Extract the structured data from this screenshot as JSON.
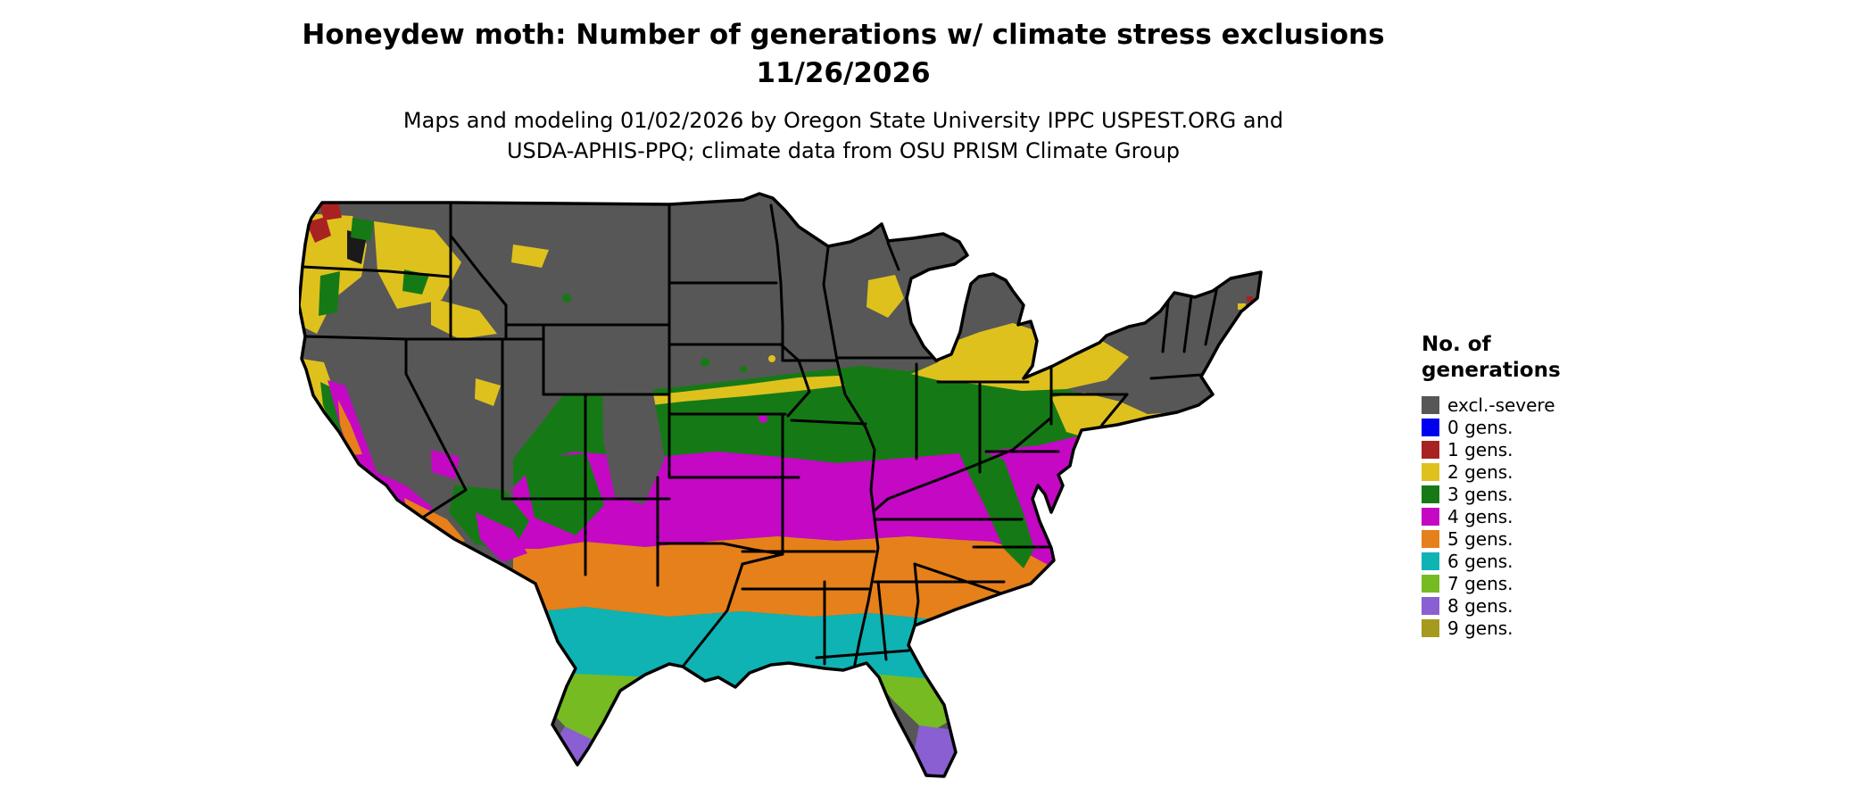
{
  "title": {
    "line1": "Honeydew moth: Number of generations w/ climate stress exclusions",
    "line2": "11/26/2026"
  },
  "subtitle": {
    "line1": "Maps and modeling 01/02/2026 by Oregon State University IPPC USPEST.ORG and",
    "line2": "USDA-APHIS-PPQ; climate data from OSU PRISM Climate Group"
  },
  "legend": {
    "title_line1": "No. of",
    "title_line2": "generations",
    "items": [
      {
        "key": "sev",
        "label": "excl.-severe",
        "color": "#575757"
      },
      {
        "key": "g0",
        "label": "0 gens.",
        "color": "#0000ee"
      },
      {
        "key": "g1",
        "label": "1 gens.",
        "color": "#a82222"
      },
      {
        "key": "g2",
        "label": "2 gens.",
        "color": "#dfc11e"
      },
      {
        "key": "g3",
        "label": "3 gens.",
        "color": "#157a15"
      },
      {
        "key": "g4",
        "label": "4 gens.",
        "color": "#c408c4"
      },
      {
        "key": "g5",
        "label": "5 gens.",
        "color": "#e6801a"
      },
      {
        "key": "g6",
        "label": "6 gens.",
        "color": "#0fb3b3"
      },
      {
        "key": "g7",
        "label": "7 gens.",
        "color": "#77bb22"
      },
      {
        "key": "g8",
        "label": "8 gens.",
        "color": "#8a5fd1"
      },
      {
        "key": "g9",
        "label": "9 gens.",
        "color": "#a69a1e"
      }
    ]
  },
  "map": {
    "area": "Contiguous United States",
    "bands_north_to_south": [
      "excl.-severe",
      "2 gens.",
      "3 gens.",
      "4 gens.",
      "5 gens.",
      "6 gens.",
      "7 gens.",
      "8 gens."
    ]
  }
}
